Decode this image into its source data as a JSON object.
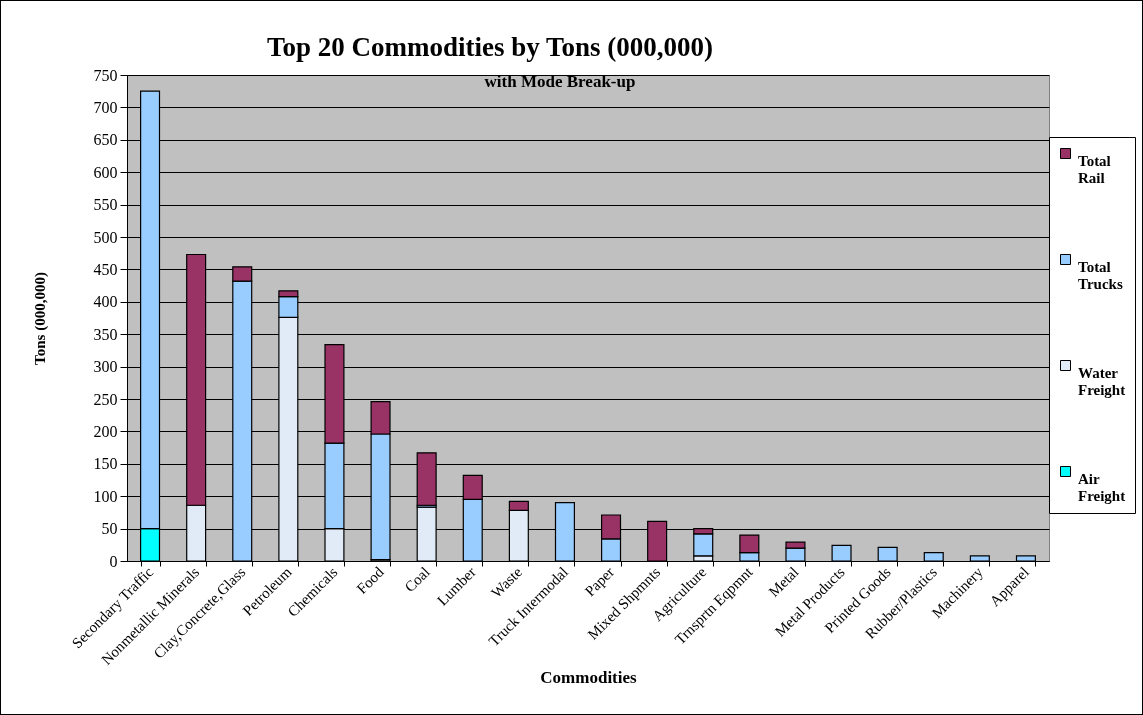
{
  "chart_data": {
    "type": "bar",
    "title": "Top 20 Commodities by Tons (000,000)",
    "subtitle": "with Mode Break-up",
    "xlabel": "Commodities",
    "ylabel": "Tons (000,000)",
    "categories": [
      "Secondary Traffic",
      "Nonmetallic Minerals",
      "Clay,Concrete,Glass",
      "Petroleum",
      "Chemicals",
      "Food",
      "Coal",
      "Lumber",
      "Waste",
      "Truck Intermodal",
      "Paper",
      "Mixed Shpmnts",
      "Agriculture",
      "Trnsprtn Eqpmnt",
      "Metal",
      "Metal Products",
      "Printed Goods",
      "Rubber/Plastics",
      "Machinery",
      "Apparel"
    ],
    "series": [
      {
        "name": "Air Freight",
        "color": "#00ffff",
        "values": [
          50,
          null,
          null,
          null,
          null,
          null,
          null,
          null,
          null,
          null,
          null,
          null,
          null,
          null,
          null,
          null,
          null,
          null,
          null,
          null
        ]
      },
      {
        "name": "Water Freight",
        "color": "#e0ebf7",
        "values": [
          null,
          86,
          null,
          376,
          50,
          2,
          83,
          null,
          78,
          null,
          null,
          null,
          8,
          null,
          null,
          null,
          null,
          null,
          null,
          null
        ]
      },
      {
        "name": "Total Trucks",
        "color": "#99ccff",
        "values": [
          675,
          null,
          432,
          32,
          132,
          194,
          3,
          95,
          null,
          90,
          34,
          null,
          34,
          13,
          20,
          24,
          21,
          13,
          8,
          8
        ]
      },
      {
        "name": "Total Rail",
        "color": "#993366",
        "values": [
          null,
          387,
          22,
          9,
          152,
          50,
          81,
          37,
          14,
          null,
          37,
          61,
          8,
          27,
          9,
          null,
          null,
          null,
          null,
          null
        ]
      }
    ],
    "stacked": true,
    "ylim": [
      0,
      750
    ],
    "yticks": [
      0,
      50,
      100,
      150,
      200,
      250,
      300,
      350,
      400,
      450,
      500,
      550,
      600,
      650,
      700,
      750
    ],
    "grid": "y",
    "legend": "right"
  }
}
